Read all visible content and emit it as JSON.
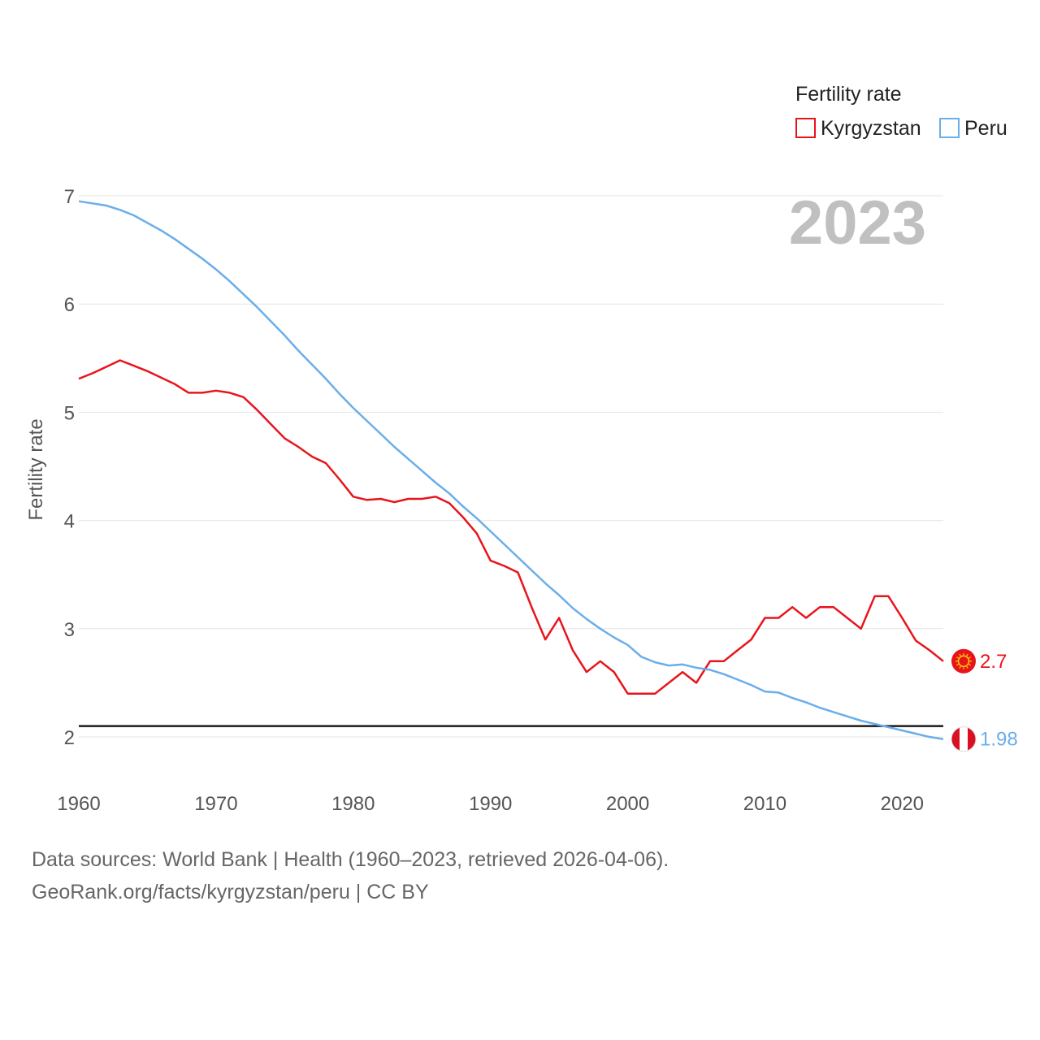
{
  "chart_data": {
    "type": "line",
    "ylabel": "Fertility rate",
    "xlabel": "",
    "year_label": "2023",
    "legend_title": "Fertility rate",
    "xlim": [
      1960,
      2023
    ],
    "ylim": [
      1.5,
      7.0
    ],
    "x_ticks": [
      1960,
      1970,
      1980,
      1990,
      2000,
      2010,
      2020
    ],
    "y_ticks": [
      2,
      3,
      4,
      5,
      6,
      7
    ],
    "reference_line": 2.1,
    "x": [
      1960,
      1961,
      1962,
      1963,
      1964,
      1965,
      1966,
      1967,
      1968,
      1969,
      1970,
      1971,
      1972,
      1973,
      1974,
      1975,
      1976,
      1977,
      1978,
      1979,
      1980,
      1981,
      1982,
      1983,
      1984,
      1985,
      1986,
      1987,
      1988,
      1989,
      1990,
      1991,
      1992,
      1993,
      1994,
      1995,
      1996,
      1997,
      1998,
      1999,
      2000,
      2001,
      2002,
      2003,
      2004,
      2005,
      2006,
      2007,
      2008,
      2009,
      2010,
      2011,
      2012,
      2013,
      2014,
      2015,
      2016,
      2017,
      2018,
      2019,
      2020,
      2021,
      2022,
      2023
    ],
    "series": [
      {
        "name": "Kyrgyzstan",
        "color": "#e8141c",
        "end_label": "2.7",
        "values": [
          5.31,
          5.36,
          5.42,
          5.48,
          5.43,
          5.38,
          5.32,
          5.26,
          5.18,
          5.18,
          5.2,
          5.18,
          5.14,
          5.02,
          4.89,
          4.76,
          4.68,
          4.59,
          4.53,
          4.38,
          4.22,
          4.19,
          4.2,
          4.17,
          4.2,
          4.2,
          4.22,
          4.16,
          4.03,
          3.88,
          3.63,
          3.58,
          3.52,
          3.2,
          2.9,
          3.1,
          2.8,
          2.6,
          2.7,
          2.6,
          2.4,
          2.4,
          2.4,
          2.5,
          2.6,
          2.5,
          2.7,
          2.7,
          2.8,
          2.9,
          3.1,
          3.1,
          3.2,
          3.1,
          3.2,
          3.2,
          3.1,
          3.0,
          3.3,
          3.3,
          3.1,
          2.89,
          2.8,
          2.7
        ]
      },
      {
        "name": "Peru",
        "color": "#6aaeea",
        "end_label": "1.98",
        "values": [
          6.95,
          6.93,
          6.91,
          6.87,
          6.82,
          6.75,
          6.68,
          6.6,
          6.51,
          6.42,
          6.32,
          6.21,
          6.09,
          5.97,
          5.84,
          5.71,
          5.57,
          5.44,
          5.31,
          5.17,
          5.04,
          4.92,
          4.8,
          4.68,
          4.57,
          4.46,
          4.35,
          4.25,
          4.13,
          4.02,
          3.9,
          3.78,
          3.66,
          3.54,
          3.42,
          3.31,
          3.19,
          3.09,
          3.0,
          2.92,
          2.85,
          2.74,
          2.69,
          2.66,
          2.67,
          2.64,
          2.62,
          2.58,
          2.53,
          2.48,
          2.42,
          2.41,
          2.36,
          2.32,
          2.27,
          2.23,
          2.19,
          2.15,
          2.12,
          2.09,
          2.06,
          2.03,
          2.0,
          1.98
        ]
      }
    ]
  },
  "footer": {
    "sources": "Data sources: World Bank | Health (1960–2023, retrieved 2026-04-06).",
    "credit": "GeoRank.org/facts/kyrgyzstan/peru | CC BY"
  },
  "colors": {
    "grid": "#e6e6e6",
    "reference": "#1a1a1a",
    "peru_flag_red": "#d91023",
    "kyrgyz_flag_red": "#e8141c",
    "kyrgyz_flag_sun": "#ffd700"
  }
}
